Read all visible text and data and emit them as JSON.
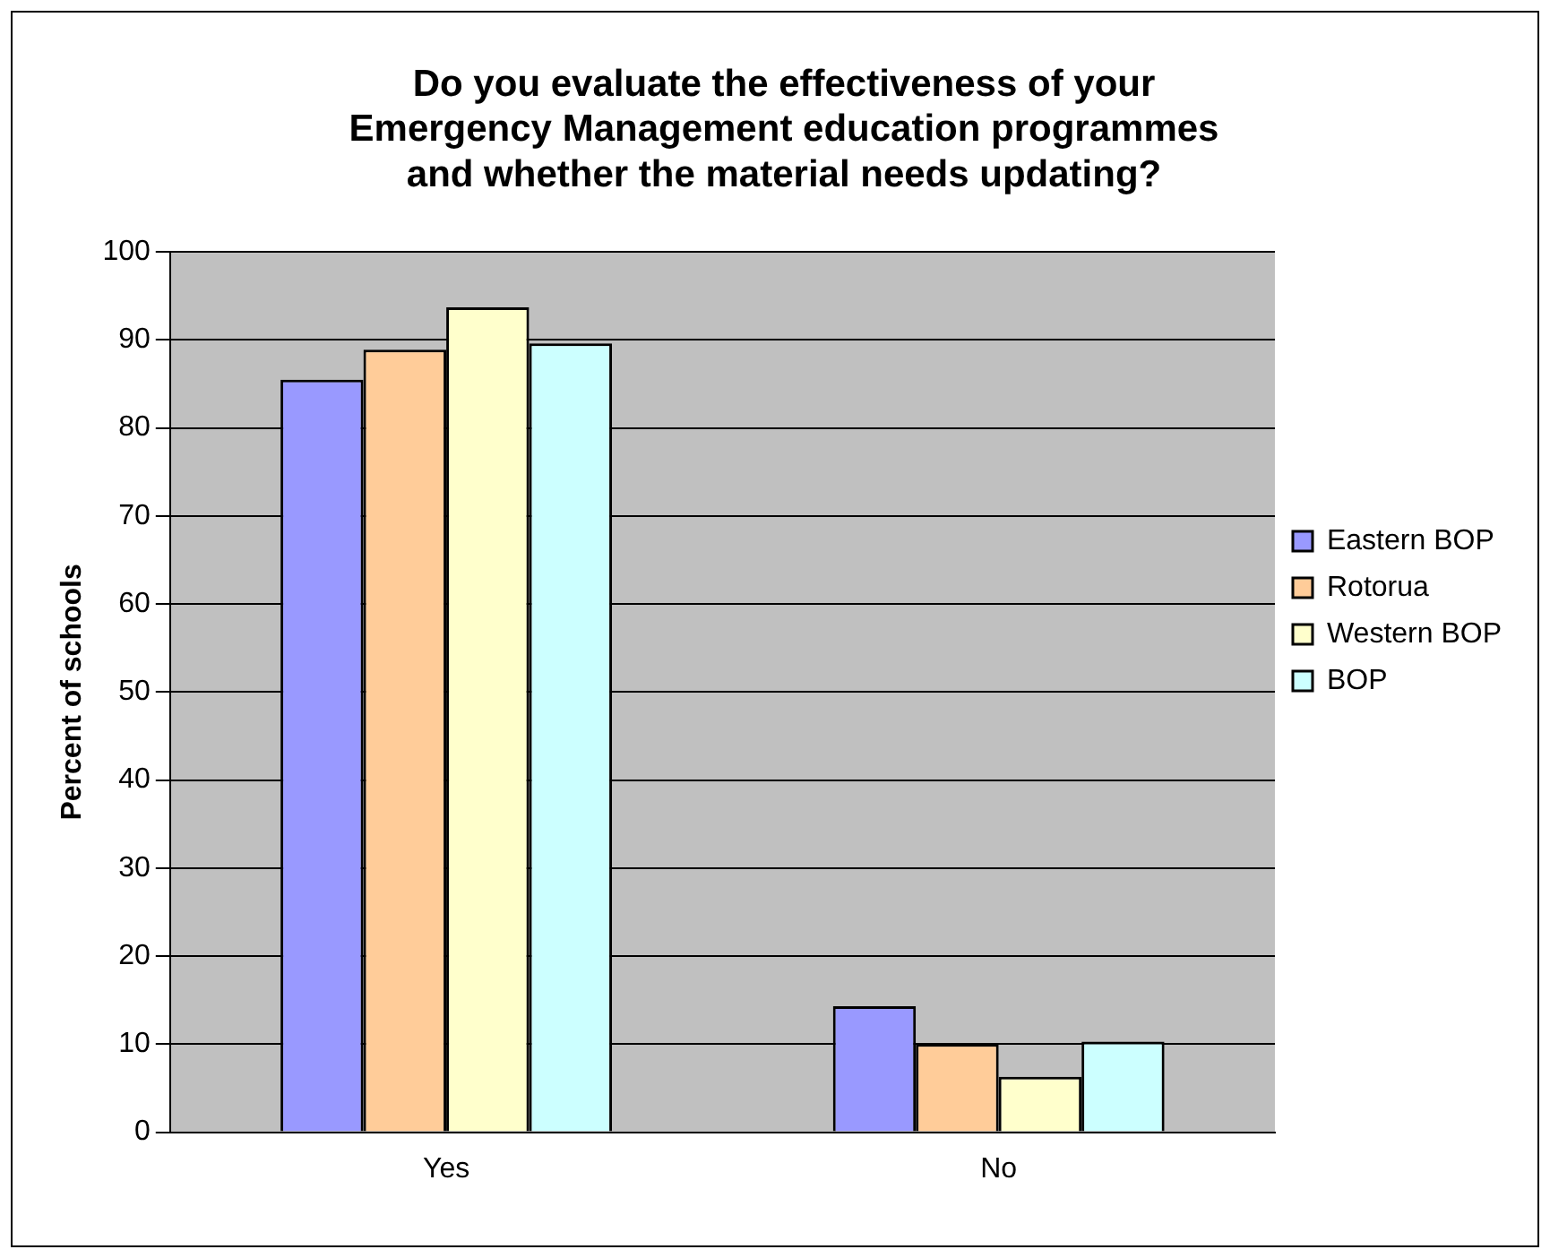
{
  "chart_data": {
    "type": "bar",
    "title": "Do you evaluate the effectiveness of your\nEmergency Management education programmes\nand whether the material needs updating?",
    "ylabel": "Percent of schools",
    "categories": [
      "Yes",
      "No"
    ],
    "series": [
      {
        "name": "Eastern BOP",
        "color": "#9999ff",
        "values": [
          85.5,
          14.3
        ]
      },
      {
        "name": "Rotorua",
        "color": "#ffcc99",
        "values": [
          88.9,
          10.0
        ]
      },
      {
        "name": "Western BOP",
        "color": "#ffffcc",
        "values": [
          93.7,
          6.3
        ]
      },
      {
        "name": "BOP",
        "color": "#ccffff",
        "values": [
          89.6,
          10.3
        ]
      }
    ],
    "ylim": [
      0,
      100
    ],
    "yticks": [
      0,
      10,
      20,
      30,
      40,
      50,
      60,
      70,
      80,
      90,
      100
    ],
    "grid": "y",
    "legend": "right"
  }
}
